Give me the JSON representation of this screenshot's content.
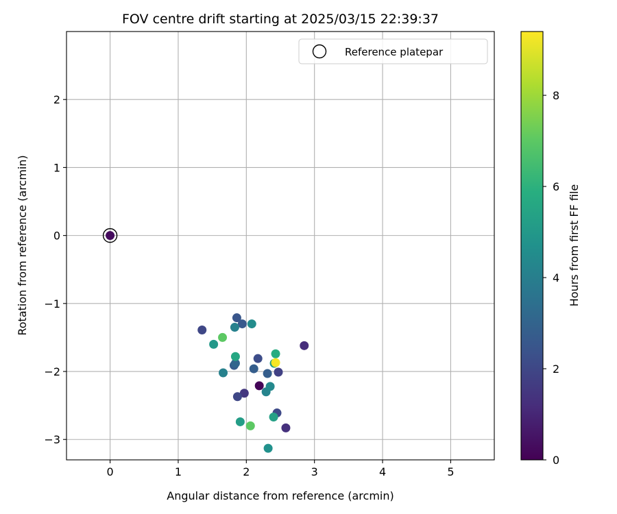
{
  "chart_data": {
    "type": "scatter",
    "title": "FOV centre drift starting at 2025/03/15 22:39:37",
    "xlabel": "Angular distance from reference (arcmin)",
    "ylabel": "Rotation from reference (arcmin)",
    "xlim": [
      -0.64,
      5.64
    ],
    "ylim": [
      -3.3,
      3.0
    ],
    "xticks": [
      0,
      1,
      2,
      3,
      4,
      5
    ],
    "yticks": [
      -3,
      -2,
      -1,
      0,
      1,
      2
    ],
    "grid": true,
    "legend": {
      "position": "top-right",
      "entries": [
        {
          "label": "Reference platepar",
          "marker": "open-circle",
          "color": "#000000"
        }
      ]
    },
    "colorbar": {
      "label": "Hours from first FF file",
      "colormap": "viridis",
      "range": [
        0,
        9.4
      ],
      "ticks": [
        0,
        2,
        4,
        6,
        8
      ]
    },
    "reference_point": {
      "x": 0,
      "y": 0
    },
    "points": [
      {
        "x": 0.0,
        "y": 0.0,
        "hours": 0.3
      },
      {
        "x": 2.19,
        "y": -2.21,
        "hours": 0.1
      },
      {
        "x": 2.85,
        "y": -1.62,
        "hours": 1.2
      },
      {
        "x": 2.58,
        "y": -2.83,
        "hours": 1.3
      },
      {
        "x": 1.97,
        "y": -2.32,
        "hours": 1.5
      },
      {
        "x": 2.47,
        "y": -2.01,
        "hours": 1.8
      },
      {
        "x": 1.35,
        "y": -1.39,
        "hours": 2.0
      },
      {
        "x": 1.87,
        "y": -2.37,
        "hours": 2.0
      },
      {
        "x": 2.45,
        "y": -2.61,
        "hours": 2.1
      },
      {
        "x": 2.17,
        "y": -1.81,
        "hours": 2.2
      },
      {
        "x": 1.86,
        "y": -1.21,
        "hours": 2.5
      },
      {
        "x": 1.94,
        "y": -1.3,
        "hours": 2.6
      },
      {
        "x": 1.82,
        "y": -1.91,
        "hours": 2.7
      },
      {
        "x": 2.31,
        "y": -2.03,
        "hours": 2.8
      },
      {
        "x": 2.11,
        "y": -1.96,
        "hours": 2.8
      },
      {
        "x": 1.84,
        "y": -1.88,
        "hours": 3.1
      },
      {
        "x": 1.83,
        "y": -1.35,
        "hours": 4.1
      },
      {
        "x": 1.66,
        "y": -2.02,
        "hours": 4.1
      },
      {
        "x": 2.29,
        "y": -2.3,
        "hours": 4.2
      },
      {
        "x": 2.35,
        "y": -2.22,
        "hours": 4.4
      },
      {
        "x": 2.08,
        "y": -1.3,
        "hours": 4.5
      },
      {
        "x": 2.32,
        "y": -3.13,
        "hours": 4.7
      },
      {
        "x": 1.52,
        "y": -1.6,
        "hours": 5.0
      },
      {
        "x": 2.41,
        "y": -1.88,
        "hours": 5.1
      },
      {
        "x": 1.91,
        "y": -2.74,
        "hours": 5.2
      },
      {
        "x": 2.4,
        "y": -2.67,
        "hours": 5.3
      },
      {
        "x": 1.84,
        "y": -1.78,
        "hours": 5.6
      },
      {
        "x": 2.43,
        "y": -1.74,
        "hours": 5.8
      },
      {
        "x": 1.65,
        "y": -1.5,
        "hours": 7.0
      },
      {
        "x": 2.06,
        "y": -2.8,
        "hours": 7.0
      },
      {
        "x": 2.43,
        "y": -1.87,
        "hours": 9.3
      }
    ]
  }
}
